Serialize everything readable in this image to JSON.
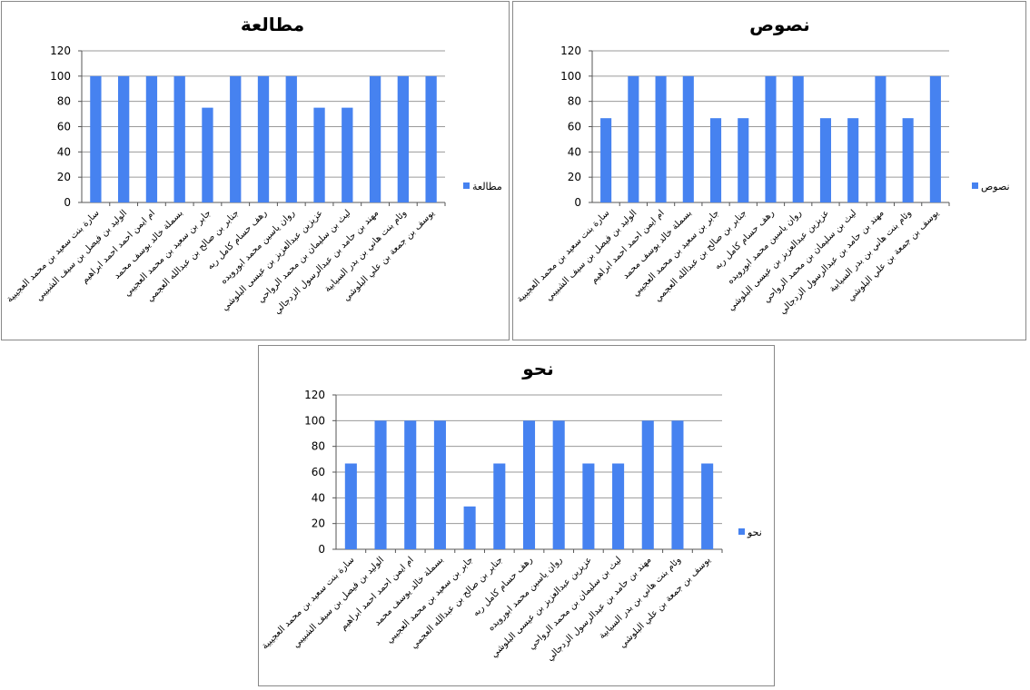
{
  "students": [
    "سارة بنت سعيد بن محمد العجيبية",
    "الوليد بن فيصل بن سيف الشبيبي",
    "ام ايمن احمد احمد ابراهيم",
    "بسملة خالد يوسف محمد",
    "جابر بن سعيد بن محمد العجيبي",
    "جنابر بن صالح بن عبدالله العجمي",
    "رهف حسام كامل ربه",
    "روان ياسين محمد ابورويده",
    "عزيزين عبدالعزيز بن عيسى البلوشي",
    "ليث بن سليمان بن محمد الرواحي",
    "مهند بن حامد بن عبدالرسول الزدجالي",
    "وئام بنت هاني بن بدر السيابية",
    "يوسف بن جمعة بن علي البلوشي"
  ],
  "bar_color": "#4682f0",
  "chart_data": [
    {
      "type": "bar",
      "title": "مطالعة",
      "legend": "مطالعة",
      "legend_position": "right",
      "yticks": [
        "0",
        "20",
        "40",
        "60",
        "80",
        "100",
        "120"
      ],
      "ylim": [
        0,
        120
      ],
      "grid": true,
      "values": [
        100,
        100,
        100,
        100,
        75,
        100,
        100,
        100,
        75,
        75,
        100,
        100,
        100
      ]
    },
    {
      "type": "bar",
      "title": "نصوص",
      "legend": "نصوص",
      "legend_position": "right",
      "yticks": [
        "0",
        "20",
        "40",
        "60",
        "80",
        "100",
        "120"
      ],
      "ylim": [
        0,
        120
      ],
      "grid": true,
      "values": [
        66.7,
        100,
        100,
        100,
        66.7,
        66.7,
        100,
        100,
        66.7,
        66.7,
        100,
        66.7,
        100
      ]
    },
    {
      "type": "bar",
      "title": "نحو",
      "legend": "نحو",
      "legend_position": "right",
      "yticks": [
        "0",
        "20",
        "40",
        "60",
        "80",
        "100",
        "120"
      ],
      "ylim": [
        0,
        120
      ],
      "grid": true,
      "values": [
        66.7,
        100,
        100,
        100,
        33.3,
        66.7,
        100,
        100,
        66.7,
        66.7,
        100,
        100,
        66.7
      ]
    }
  ]
}
